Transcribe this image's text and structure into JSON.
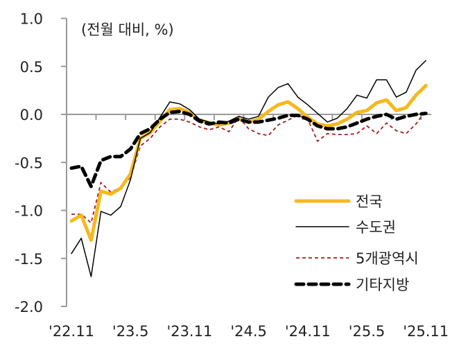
{
  "chart_data": {
    "type": "line",
    "title": "",
    "unit_note": "(전월 대비, %)",
    "xlabel": "",
    "ylabel": "",
    "ylim": [
      -2.0,
      1.0
    ],
    "yticks": [
      "1.0",
      "0.5",
      "0.0",
      "-0.5",
      "-1.0",
      "-1.5",
      "-2.0"
    ],
    "ytick_values": [
      1.0,
      0.5,
      0.0,
      -0.5,
      -1.0,
      -1.5,
      -2.0
    ],
    "xtick_labels": [
      "'22.11",
      "'23.5",
      "'23.11",
      "'24.5",
      "'24.11",
      "'25.5",
      "'25.11"
    ],
    "grid": false,
    "legend_position": "lower right (inside plot)",
    "x": [
      "'22.11",
      "'22.12",
      "'23.1",
      "'23.2",
      "'23.3",
      "'23.4",
      "'23.5",
      "'23.6",
      "'23.7",
      "'23.8",
      "'23.9",
      "'23.10",
      "'23.11",
      "'23.12",
      "'24.1",
      "'24.2",
      "'24.3",
      "'24.4",
      "'24.5",
      "'24.6",
      "'24.7",
      "'24.8",
      "'24.9",
      "'24.10",
      "'24.11",
      "'24.12",
      "'25.1",
      "'25.2",
      "'25.3",
      "'25.4",
      "'25.5",
      "'25.6",
      "'25.7",
      "'25.8",
      "'25.9",
      "'25.10",
      "'25.11"
    ],
    "series": [
      {
        "name": "전국",
        "color": "#F5B91E",
        "style": "solid-thick",
        "values": [
          -1.11,
          -1.05,
          -1.31,
          -0.8,
          -0.83,
          -0.77,
          -0.62,
          -0.25,
          -0.19,
          -0.07,
          0.05,
          0.06,
          0.02,
          -0.06,
          -0.09,
          -0.11,
          -0.09,
          -0.05,
          -0.08,
          -0.05,
          0.03,
          0.1,
          0.13,
          0.06,
          -0.03,
          -0.1,
          -0.12,
          -0.1,
          -0.05,
          0.02,
          0.04,
          0.12,
          0.15,
          0.04,
          0.07,
          0.2,
          0.3
        ]
      },
      {
        "name": "수도권",
        "color": "#000000",
        "style": "solid-thin",
        "values": [
          -1.45,
          -1.29,
          -1.69,
          -1.01,
          -1.05,
          -0.96,
          -0.68,
          -0.25,
          -0.19,
          -0.03,
          0.13,
          0.11,
          0.05,
          -0.05,
          -0.08,
          -0.1,
          -0.07,
          -0.02,
          -0.05,
          -0.02,
          0.18,
          0.28,
          0.32,
          0.18,
          0.1,
          0.01,
          -0.08,
          -0.04,
          0.06,
          0.2,
          0.17,
          0.36,
          0.36,
          0.18,
          0.23,
          0.46,
          0.56
        ]
      },
      {
        "name": "5개광역시",
        "color": "#A01C22",
        "style": "dashed-thin",
        "values": [
          -1.04,
          -1.04,
          -1.13,
          -0.71,
          -0.81,
          -0.76,
          -0.66,
          -0.33,
          -0.25,
          -0.13,
          -0.05,
          -0.05,
          -0.08,
          -0.13,
          -0.16,
          -0.13,
          -0.18,
          -0.03,
          -0.15,
          -0.2,
          -0.22,
          -0.11,
          -0.06,
          -0.01,
          -0.05,
          -0.28,
          -0.2,
          -0.21,
          -0.21,
          -0.2,
          -0.12,
          -0.2,
          -0.09,
          -0.17,
          -0.2,
          -0.1,
          0.04
        ]
      },
      {
        "name": "기타지방",
        "color": "#000000",
        "style": "dashed-thick",
        "values": [
          -0.56,
          -0.54,
          -0.75,
          -0.48,
          -0.44,
          -0.44,
          -0.36,
          -0.2,
          -0.15,
          -0.05,
          0.02,
          0.03,
          0.0,
          -0.07,
          -0.1,
          -0.08,
          -0.09,
          -0.05,
          -0.08,
          -0.08,
          -0.06,
          -0.04,
          -0.01,
          -0.01,
          -0.05,
          -0.12,
          -0.15,
          -0.15,
          -0.13,
          -0.09,
          -0.05,
          -0.02,
          0.0,
          -0.05,
          -0.02,
          0.0,
          0.01
        ]
      }
    ]
  }
}
